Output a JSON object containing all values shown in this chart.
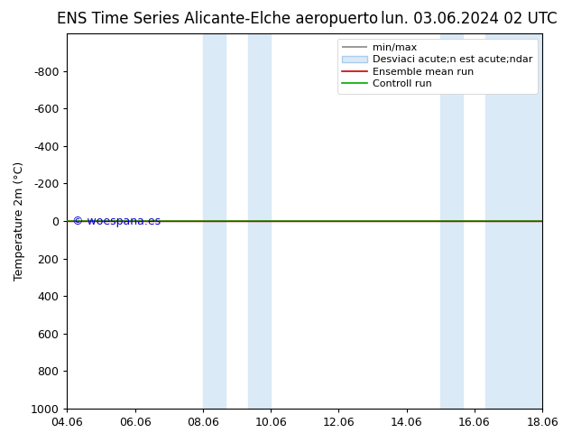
{
  "title_left": "ENS Time Series Alicante-Elche aeropuerto",
  "title_right": "lun. 03.06.2024 02 UTC",
  "ylabel": "Temperature 2m (°C)",
  "ylim_top": -1000,
  "ylim_bottom": 1000,
  "yticks": [
    -800,
    -600,
    -400,
    -200,
    0,
    200,
    400,
    600,
    800,
    1000
  ],
  "xtick_labels": [
    "04.06",
    "06.06",
    "08.06",
    "10.06",
    "12.06",
    "14.06",
    "16.06",
    "18.06"
  ],
  "xtick_positions": [
    0,
    2,
    4,
    6,
    8,
    10,
    12,
    14
  ],
  "shaded_regions": [
    {
      "xstart": 4.0,
      "xend": 4.67,
      "color": "#daeaf7"
    },
    {
      "xstart": 5.33,
      "xend": 6.0,
      "color": "#daeaf7"
    },
    {
      "xstart": 11.0,
      "xend": 11.67,
      "color": "#daeaf7"
    },
    {
      "xstart": 12.33,
      "xend": 14.0,
      "color": "#daeaf7"
    }
  ],
  "green_line_y": 0,
  "red_line_y": 0,
  "watermark": "© woespana.es",
  "watermark_color": "#0000cc",
  "title_fontsize": 12,
  "axis_fontsize": 9,
  "tick_fontsize": 9,
  "background_color": "#ffffff",
  "legend_fontsize": 8
}
